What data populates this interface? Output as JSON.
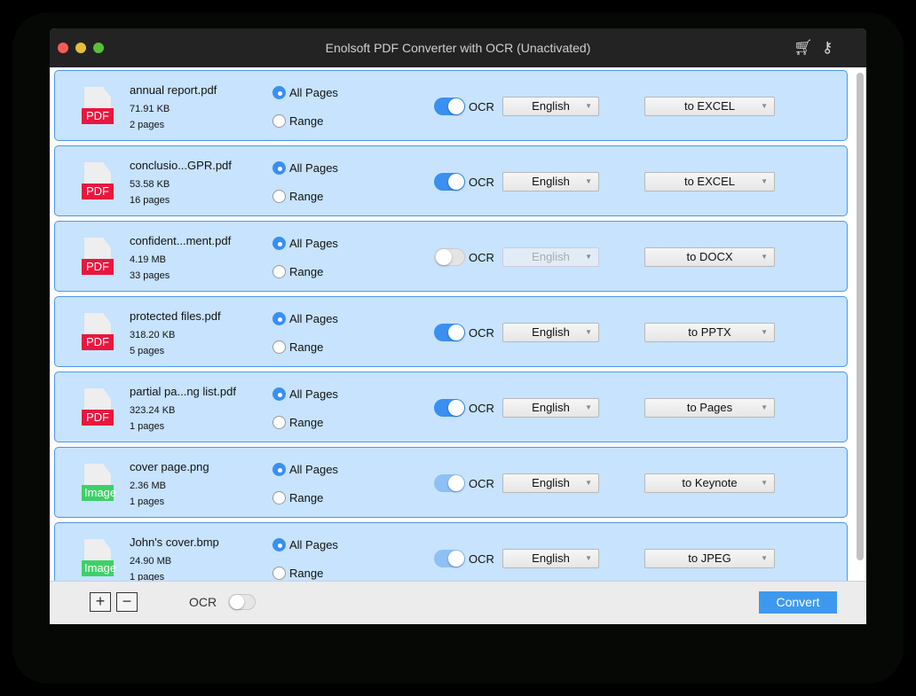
{
  "window": {
    "title": "Enolsoft PDF Converter with OCR (Unactivated)",
    "icons": [
      "cart-icon",
      "key-icon"
    ]
  },
  "colors": {
    "pdf_badge": "#e8173f",
    "image_badge": "#3ed068",
    "accent": "#3a8ff1",
    "row_bg": "#c7e3fd"
  },
  "labels": {
    "all_pages": "All Pages",
    "range": "Range",
    "ocr": "OCR"
  },
  "files": [
    {
      "name": "annual report.pdf",
      "size": "71.91 KB",
      "pages": "2 pages",
      "type": "PDF",
      "page_mode": "All Pages",
      "ocr": "on",
      "language": "English",
      "format": "to EXCEL"
    },
    {
      "name": "conclusio...GPR.pdf",
      "size": "53.58 KB",
      "pages": "16 pages",
      "type": "PDF",
      "page_mode": "All Pages",
      "ocr": "on",
      "language": "English",
      "format": "to EXCEL"
    },
    {
      "name": "confident...ment.pdf",
      "size": "4.19 MB",
      "pages": "33 pages",
      "type": "PDF",
      "page_mode": "All Pages",
      "ocr": "off",
      "language": "English",
      "format": "to DOCX"
    },
    {
      "name": "protected files.pdf",
      "size": "318.20 KB",
      "pages": "5 pages",
      "type": "PDF",
      "page_mode": "All Pages",
      "ocr": "on",
      "language": "English",
      "format": "to PPTX"
    },
    {
      "name": "partial pa...ng list.pdf",
      "size": "323.24 KB",
      "pages": "1 pages",
      "type": "PDF",
      "page_mode": "All Pages",
      "ocr": "on",
      "language": "English",
      "format": "to Pages"
    },
    {
      "name": "cover page.png",
      "size": "2.36 MB",
      "pages": "1 pages",
      "type": "Image",
      "page_mode": "All Pages",
      "ocr": "disabled-on",
      "language": "English",
      "format": "to Keynote"
    },
    {
      "name": "John's cover.bmp",
      "size": "24.90 MB",
      "pages": "1 pages",
      "type": "Image",
      "page_mode": "All Pages",
      "ocr": "disabled-on",
      "language": "English",
      "format": "to JPEG"
    }
  ],
  "footer": {
    "add": "+",
    "remove": "−",
    "ocr_label": "OCR",
    "ocr": "off",
    "convert": "Convert"
  }
}
